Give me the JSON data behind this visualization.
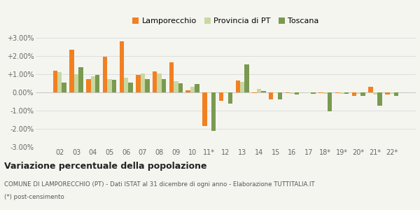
{
  "categories": [
    "02",
    "03",
    "04",
    "05",
    "06",
    "07",
    "08",
    "09",
    "10",
    "11*",
    "12",
    "13",
    "14",
    "15",
    "16",
    "17",
    "18*",
    "19*",
    "20*",
    "21*",
    "22*"
  ],
  "lamporecchio": [
    1.2,
    2.35,
    0.75,
    1.95,
    2.8,
    0.98,
    1.15,
    1.65,
    0.12,
    -1.85,
    -0.48,
    0.65,
    -0.05,
    -0.38,
    -0.05,
    0.0,
    -0.05,
    -0.05,
    -0.18,
    0.3,
    -0.12
  ],
  "provincia_pt": [
    1.1,
    1.0,
    0.87,
    0.72,
    0.82,
    1.05,
    1.05,
    0.62,
    0.3,
    -0.03,
    -0.03,
    0.58,
    0.18,
    -0.04,
    -0.07,
    -0.04,
    -0.08,
    -0.08,
    -0.08,
    -0.13,
    -0.08
  ],
  "toscana": [
    0.55,
    1.4,
    0.95,
    0.7,
    0.55,
    0.72,
    0.75,
    0.5,
    0.48,
    -2.1,
    -0.6,
    1.55,
    0.08,
    -0.38,
    -0.12,
    -0.06,
    -1.02,
    -0.08,
    -0.18,
    -0.72,
    -0.18
  ],
  "color_lamporecchio": "#f28020",
  "color_provincia": "#c8d8a0",
  "color_toscana": "#7a9a50",
  "ylim": [
    -3.0,
    3.0
  ],
  "yticks": [
    -3.0,
    -2.0,
    -1.0,
    0.0,
    1.0,
    2.0,
    3.0
  ],
  "title": "Variazione percentuale della popolazione",
  "subtitle1": "COMUNE DI LAMPORECCHIO (PT) - Dati ISTAT al 31 dicembre di ogni anno - Elaborazione TUTTITALIA.IT",
  "subtitle2": "(*) post-censimento",
  "bg_color": "#f5f5f0",
  "grid_color": "#dddddd",
  "bar_width": 0.27
}
